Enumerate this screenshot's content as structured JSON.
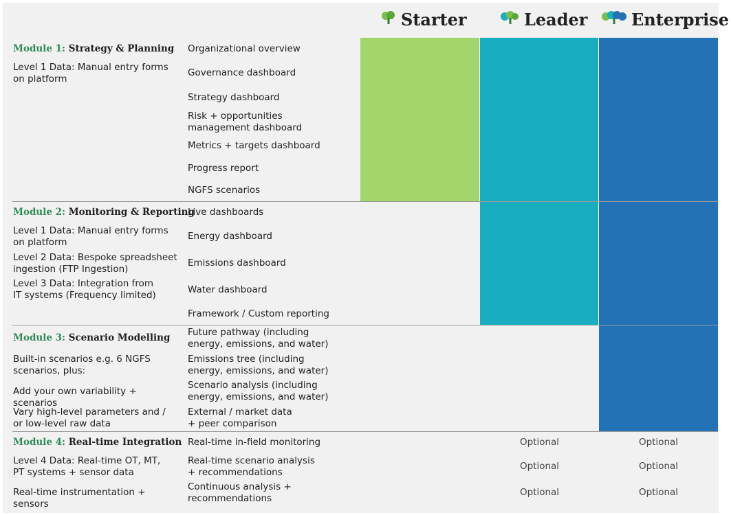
{
  "colors": {
    "starter": "#a2d56a",
    "leader": "#18adbf",
    "enterprise": "#2272b5",
    "module_num": "#2e8b57"
  },
  "plans": [
    {
      "name": "Starter",
      "icon": "tree-icon"
    },
    {
      "name": "Leader",
      "icon": "tree-icon"
    },
    {
      "name": "Enterprise",
      "icon": "tree-icon"
    }
  ],
  "modules": [
    {
      "num": "Module 1:",
      "title": "Strategy & Planning",
      "notes": [
        "Level 1 Data: Manual entry forms on platform"
      ],
      "features": [
        "Organizational overview",
        "Governance dashboard",
        "Strategy dashboard",
        "Risk + opportunities management dashboard",
        "Metrics + targets dashboard",
        "Progress report",
        "NGFS scenarios"
      ]
    },
    {
      "num": "Module 2:",
      "title": "Monitoring & Reporting",
      "notes": [
        "Level 1 Data: Manual entry forms on platform",
        "Level 2 Data: Bespoke spreadsheet ingestion (FTP Ingestion)",
        "Level 3 Data: Integration from IT systems (Frequency limited)"
      ],
      "features": [
        "Live dashboards",
        "Energy dashboard",
        "Emissions dashboard",
        "Water dashboard",
        "Framework / Custom reporting"
      ]
    },
    {
      "num": "Module 3:",
      "title": "Scenario Modelling",
      "notes": [
        "Built-in scenarios e.g. 6 NGFS scenarios, plus:",
        "Add your own variability + scenarios",
        "Vary high-level parameters and / or low-level raw data"
      ],
      "features": [
        "Future pathway (including energy, emissions, and water)",
        "Emissions tree (including energy, emissions, and water)",
        "Scenario analysis (including energy, emissions, and water)",
        "External / market data + peer comparison"
      ]
    },
    {
      "num": "Module 4:",
      "title": "Real-time Integration",
      "notes": [
        "Level 4 Data: Real-time OT, MT, PT systems + sensor data",
        "Real-time instrumentation + sensors"
      ],
      "features": [
        "Real-time in-field monitoring",
        "Real-time scenario analysis + recommendations",
        "Continuous analysis + recommendations"
      ],
      "leader": [
        "Optional",
        "Optional",
        "Optional"
      ],
      "enterprise": [
        "Optional",
        "Optional",
        "Optional"
      ]
    }
  ]
}
